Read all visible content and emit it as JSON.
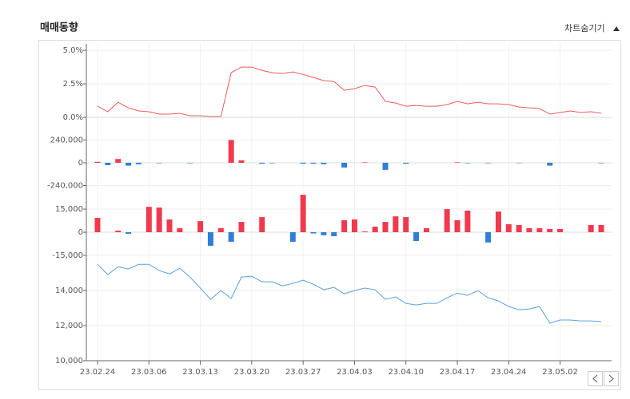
{
  "header": {
    "title": "매매동향",
    "toggle": "차트숨기기"
  },
  "chart_data": [
    {
      "type": "line",
      "color": "#f0595b",
      "values": [
        0.83,
        0.42,
        1.13,
        0.71,
        0.48,
        0.42,
        0.24,
        0.24,
        0.3,
        0.12,
        0.12,
        0.06,
        0.06,
        3.33,
        3.75,
        3.75,
        3.5,
        3.33,
        3.27,
        3.39,
        3.2,
        2.98,
        2.74,
        2.68,
        2.02,
        2.14,
        2.38,
        2.26,
        1.19,
        1.07,
        0.83,
        0.89,
        0.83,
        0.83,
        0.95,
        1.19,
        1.01,
        1.13,
        1.01,
        1.01,
        0.95,
        0.77,
        0.71,
        0.65,
        0.24,
        0.36,
        0.48,
        0.36,
        0.42,
        0.3
      ],
      "ylim": [
        -0.77,
        5.48
      ],
      "yticks": [
        {
          "value": 5,
          "label": "5.0%"
        },
        {
          "value": 2.5,
          "label": "2.5%"
        },
        {
          "value": 0,
          "label": "0.0%"
        }
      ],
      "grid": true
    },
    {
      "type": "bar",
      "positive_color": "#f0394d",
      "negative_color": "#2f7ed8",
      "values": [
        10000,
        -25000,
        40000,
        -30000,
        -15000,
        0,
        -5000,
        0,
        0,
        -5000,
        0,
        0,
        0,
        240000,
        25000,
        0,
        -10000,
        -5000,
        0,
        0,
        -10000,
        -10000,
        -15000,
        0,
        -50000,
        0,
        5000,
        0,
        -75000,
        0,
        -10000,
        0,
        0,
        0,
        0,
        5000,
        -5000,
        0,
        -5000,
        0,
        0,
        -3000,
        0,
        0,
        -30000,
        0,
        0,
        0,
        0,
        -5000
      ],
      "ylim": [
        -362000,
        370000
      ],
      "yticks": [
        {
          "value": 240000,
          "label": "240,000"
        },
        0,
        {
          "value": -240000,
          "label": "-240,000"
        }
      ],
      "grid": true
    },
    {
      "type": "bar",
      "positive_color": "#f0394d",
      "negative_color": "#2f7ed8",
      "values": [
        9300,
        0,
        1000,
        -1000,
        0,
        16500,
        16000,
        8300,
        2600,
        0,
        7200,
        -8800,
        2600,
        -6200,
        6700,
        0,
        9800,
        0,
        0,
        -6200,
        24300,
        -800,
        -2000,
        -2600,
        7800,
        8300,
        500,
        3600,
        6700,
        10300,
        9800,
        -5700,
        2600,
        0,
        15000,
        7800,
        14000,
        0,
        -6700,
        13400,
        5200,
        4700,
        2600,
        2600,
        2100,
        2100,
        0,
        0,
        4700,
        4700
      ],
      "ylim": [
        -19700,
        22800
      ],
      "yticks": [
        {
          "value": 15000,
          "label": "15,000"
        },
        0,
        {
          "value": -15000,
          "label": "-15,000"
        }
      ],
      "grid": true
    },
    {
      "type": "line",
      "color": "#5aa0dc",
      "categories": [
        "23.02.24",
        null,
        null,
        null,
        null,
        "23.03.06",
        null,
        null,
        null,
        null,
        "23.03.13",
        null,
        null,
        null,
        null,
        "23.03.20",
        null,
        null,
        null,
        null,
        "23.03.27",
        null,
        null,
        null,
        null,
        "23.04.03",
        null,
        null,
        null,
        null,
        "23.04.10",
        null,
        null,
        null,
        null,
        "23.04.17",
        null,
        null,
        null,
        null,
        "23.04.24",
        null,
        null,
        null,
        null,
        "23.05.02",
        null,
        null,
        null,
        null
      ],
      "values": [
        15500,
        14910,
        15360,
        15230,
        15500,
        15500,
        15140,
        14950,
        15270,
        14770,
        14140,
        13500,
        14000,
        13550,
        14770,
        14820,
        14500,
        14500,
        14270,
        14410,
        14590,
        14360,
        14050,
        14180,
        13820,
        14000,
        14140,
        14050,
        13500,
        13640,
        13270,
        13180,
        13270,
        13270,
        13590,
        13860,
        13730,
        14000,
        13590,
        13410,
        13090,
        12910,
        12950,
        13090,
        12140,
        12320,
        12320,
        12270,
        12270,
        12230
      ],
      "ylim": [
        10000,
        15600
      ],
      "yticks": [
        {
          "value": 14000,
          "label": "14,000"
        },
        {
          "value": 12000,
          "label": "12,000"
        },
        {
          "value": 10000,
          "label": "10,000"
        }
      ],
      "grid": true
    }
  ]
}
